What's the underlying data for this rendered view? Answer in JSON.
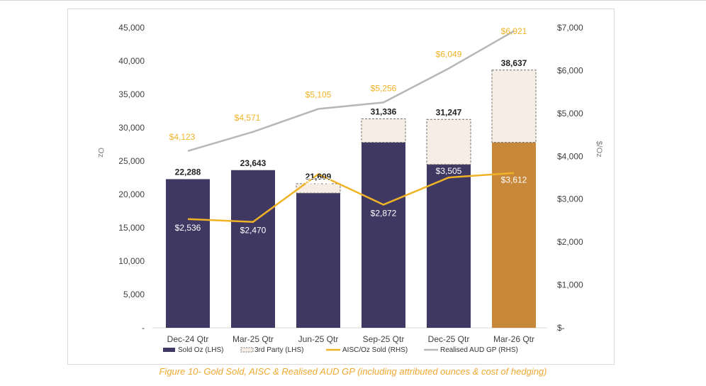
{
  "caption": "Figure 10- Gold Sold, AISC & Realised AUD GP (including attributed ounces & cost of hedging)",
  "colors": {
    "sold": "#3f3862",
    "third_party": "#f6eee4",
    "aisc": "#f0b325",
    "gp": "#b7b7b7",
    "highlight": "#c8883a",
    "gp_label": "#f0b325",
    "axis_text": "#404040"
  },
  "chart_data": {
    "type": "bar",
    "categories": [
      "Dec-24 Qtr",
      "Mar-25 Qtr",
      "Jun-25 Qtr",
      "Sep-25 Qtr",
      "Dec-25 Qtr",
      "Mar-26 Qtr"
    ],
    "series": [
      {
        "name": "Sold Oz (LHS)",
        "type": "bar",
        "axis": "left",
        "values": [
          22288,
          23643,
          20200,
          27800,
          24500,
          27800
        ]
      },
      {
        "name": "3rd Party (LHS)",
        "type": "bar-stacked",
        "axis": "left",
        "values": [
          0,
          0,
          1409,
          3536,
          6747,
          10837
        ]
      },
      {
        "name": "AISC/Oz Sold (RHS)",
        "type": "line",
        "axis": "right",
        "values": [
          2536,
          2470,
          3583,
          2872,
          3505,
          3612
        ],
        "labels": [
          "$2,536",
          "$2,470",
          "$3,583",
          "$2,872",
          "$3,505",
          "$3,612"
        ]
      },
      {
        "name": "Realised AUD GP (RHS)",
        "type": "line",
        "axis": "right",
        "values": [
          4123,
          4571,
          5105,
          5256,
          6049,
          6921
        ],
        "labels": [
          "$4,123",
          "$4,571",
          "$5,105",
          "$5,256",
          "$6,049",
          "$6,921"
        ]
      }
    ],
    "totals": [
      "22,288",
      "23,643",
      "21,609",
      "31,336",
      "31,247",
      "38,637"
    ],
    "left_axis": {
      "label": "Oz",
      "ylim": [
        0,
        45000
      ],
      "ticks": [
        "-",
        "5,000",
        "10,000",
        "15,000",
        "20,000",
        "25,000",
        "30,000",
        "35,000",
        "40,000",
        "45,000"
      ]
    },
    "right_axis": {
      "label": "$/Oz",
      "ylim": [
        0,
        7000
      ],
      "ticks": [
        "$-",
        "$1,000",
        "$2,000",
        "$3,000",
        "$4,000",
        "$5,000",
        "$6,000",
        "$7,000"
      ]
    },
    "highlight_index": 5,
    "legend": [
      "Sold Oz (LHS)",
      "3rd Party  (LHS)",
      "AISC/Oz Sold (RHS)",
      "Realised AUD GP (RHS)"
    ],
    "legend_position": "bottom"
  }
}
